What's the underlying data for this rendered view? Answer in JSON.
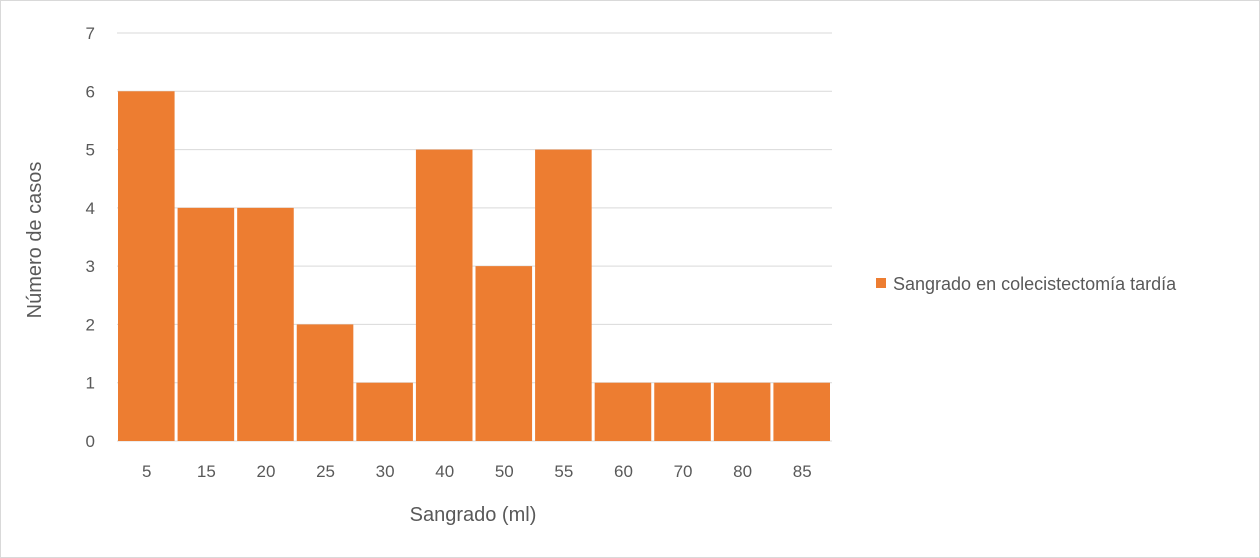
{
  "chart_data": {
    "type": "bar",
    "title": "",
    "xlabel": "Sangrado (ml)",
    "ylabel": "Número de casos",
    "categories": [
      "5",
      "15",
      "20",
      "25",
      "30",
      "40",
      "50",
      "55",
      "60",
      "70",
      "80",
      "85"
    ],
    "series": [
      {
        "name": "Sangrado en colecistectomía tardía",
        "color": "#ed7d31",
        "values": [
          6,
          4,
          4,
          2,
          1,
          5,
          3,
          5,
          1,
          1,
          1,
          1
        ]
      }
    ],
    "ylim": [
      0,
      7
    ],
    "yticks": [
      0,
      1,
      2,
      3,
      4,
      5,
      6,
      7
    ],
    "grid": true,
    "gridlines": "horizontal",
    "legend_position": "right",
    "colors": {
      "gridline": "#d9d9d9",
      "text": "#595959",
      "border": "#d9d9d9"
    }
  }
}
